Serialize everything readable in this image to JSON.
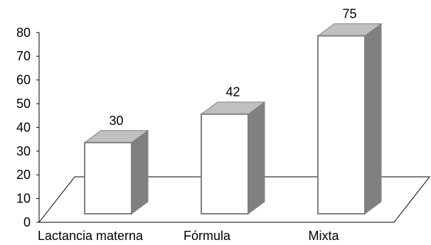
{
  "chart_data": {
    "type": "bar",
    "three_d": true,
    "categories": [
      "Lactancia materna",
      "Fórmula",
      "Mixta"
    ],
    "values": [
      30,
      42,
      75
    ],
    "data_labels": [
      "30",
      "42",
      "75"
    ],
    "ylim": [
      0,
      80
    ],
    "yticks": [
      "0",
      "10",
      "20",
      "30",
      "40",
      "50",
      "60",
      "70",
      "80"
    ],
    "grid": false,
    "legend": "none",
    "colors": {
      "bar_front": "#ffffff",
      "bar_top": "#c0c0c0",
      "bar_side": "#808080",
      "bar_outline": "#808080",
      "axis": "#000000",
      "floor": "#000000"
    }
  }
}
